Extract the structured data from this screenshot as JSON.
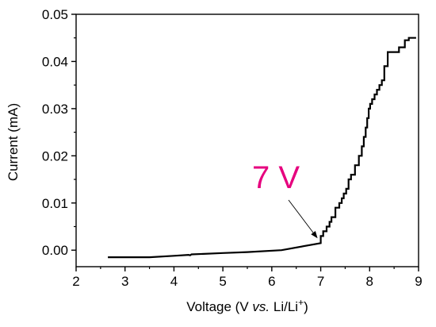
{
  "chart_data": {
    "type": "line",
    "xlabel": {
      "prefix": "Voltage (V ",
      "italic": "vs.",
      "middle": " Li/Li",
      "sup": "+",
      "suffix": ")"
    },
    "ylabel": "Current (mA)",
    "xlim": [
      2,
      9
    ],
    "ylim": [
      -0.0035,
      0.05
    ],
    "x_ticks": [
      "2",
      "3",
      "4",
      "5",
      "6",
      "7",
      "8",
      "9"
    ],
    "y_ticks": [
      "0.00",
      "0.01",
      "0.02",
      "0.03",
      "0.04",
      "0.05"
    ],
    "annotation": {
      "text": "7 V",
      "arrow_to": [
        7.0,
        0.0015
      ]
    },
    "series": [
      {
        "x": [
          2.65,
          3.5,
          4.0,
          4.3,
          4.33,
          4.36,
          5.0,
          5.5,
          6.2,
          7.0,
          7.0,
          7.05,
          7.05,
          7.12,
          7.12,
          7.18,
          7.18,
          7.22,
          7.22,
          7.3,
          7.3,
          7.38,
          7.38,
          7.43,
          7.43,
          7.47,
          7.47,
          7.52,
          7.52,
          7.57,
          7.57,
          7.62,
          7.62,
          7.7,
          7.7,
          7.78,
          7.78,
          7.84,
          7.84,
          7.88,
          7.88,
          7.92,
          7.92,
          7.95,
          7.95,
          7.98,
          7.98,
          8.01,
          8.01,
          8.05,
          8.05,
          8.1,
          8.1,
          8.15,
          8.15,
          8.2,
          8.2,
          8.25,
          8.25,
          8.3,
          8.3,
          8.37,
          8.37,
          8.42,
          8.42,
          8.6,
          8.6,
          8.72,
          8.72,
          8.8,
          8.8,
          8.95
        ],
        "y": [
          -0.0015,
          -0.0015,
          -0.0012,
          -0.001,
          -0.0011,
          -0.0009,
          -0.0006,
          -0.0004,
          0.0,
          0.0015,
          0.003,
          0.003,
          0.004,
          0.004,
          0.005,
          0.005,
          0.006,
          0.006,
          0.007,
          0.007,
          0.009,
          0.009,
          0.01,
          0.01,
          0.011,
          0.011,
          0.012,
          0.012,
          0.013,
          0.013,
          0.015,
          0.015,
          0.016,
          0.016,
          0.018,
          0.018,
          0.02,
          0.02,
          0.022,
          0.022,
          0.024,
          0.024,
          0.026,
          0.026,
          0.028,
          0.028,
          0.03,
          0.03,
          0.031,
          0.031,
          0.032,
          0.032,
          0.033,
          0.033,
          0.034,
          0.034,
          0.035,
          0.035,
          0.036,
          0.036,
          0.039,
          0.039,
          0.042,
          0.042,
          0.042,
          0.042,
          0.043,
          0.043,
          0.0445,
          0.0445,
          0.045,
          0.045
        ]
      }
    ]
  }
}
